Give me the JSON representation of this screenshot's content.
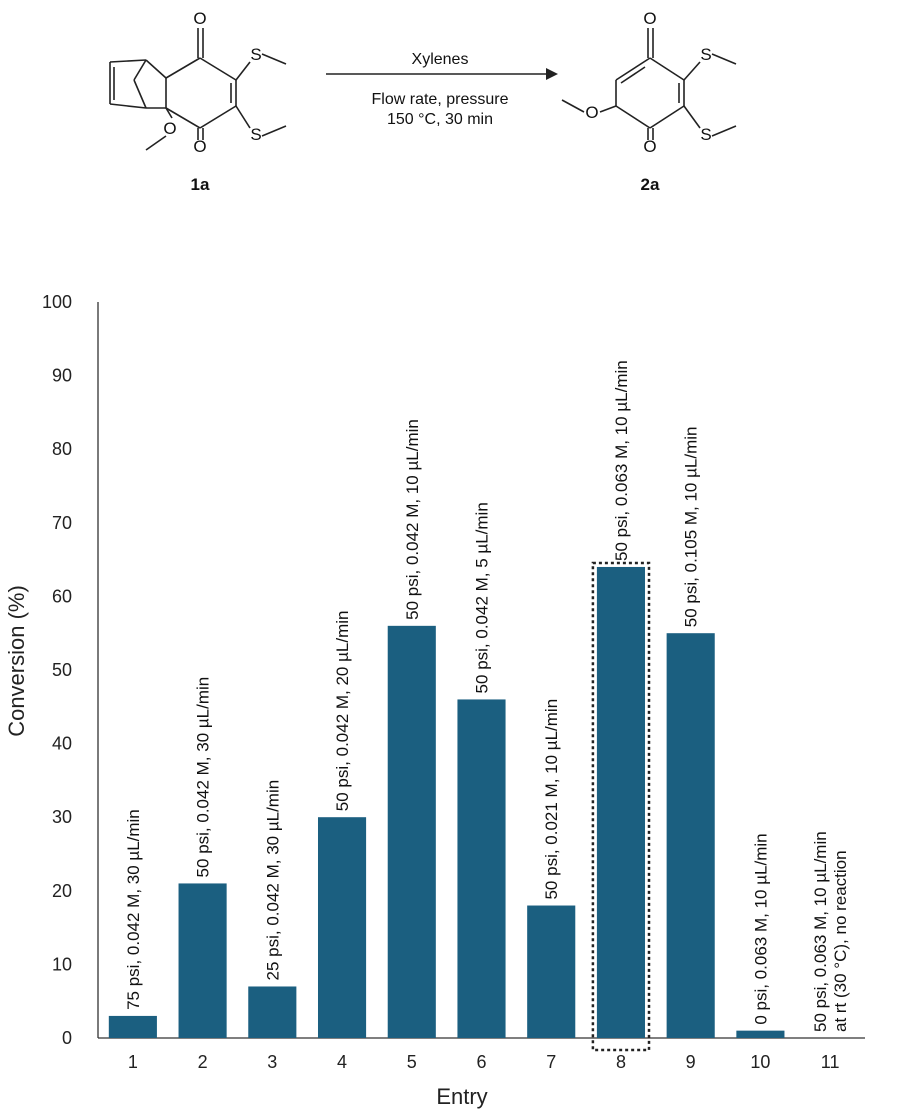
{
  "scheme": {
    "reagent": "Xylenes",
    "conditions_line1": "Flow rate, pressure",
    "conditions_line2": "150 °C, 30 min",
    "compound_left": "1a",
    "compound_right": "2a",
    "atoms": {
      "oxygen": "O",
      "sulfur": "S"
    }
  },
  "chart_data": {
    "type": "bar",
    "xlabel": "Entry",
    "ylabel": "Conversion (%)",
    "ylim": [
      0,
      100
    ],
    "yticks": [
      0,
      10,
      20,
      30,
      40,
      50,
      60,
      70,
      80,
      90,
      100
    ],
    "categories": [
      "1",
      "2",
      "3",
      "4",
      "5",
      "6",
      "7",
      "8",
      "9",
      "10",
      "11"
    ],
    "values": [
      3,
      21,
      7,
      30,
      56,
      46,
      18,
      64,
      55,
      1,
      0
    ],
    "bar_color": "#1b5f80",
    "highlighted_entry": "8",
    "grid": false,
    "legend": "none",
    "annotations": [
      [
        "75 psi, 0.042 M, 30 µL/min"
      ],
      [
        "50 psi, 0.042 M, 30 µL/min"
      ],
      [
        "25 psi, 0.042 M, 30 µL/min"
      ],
      [
        "50 psi, 0.042 M, 20 µL/min"
      ],
      [
        "50 psi, 0.042 M, 10 µL/min"
      ],
      [
        "50 psi, 0.042 M, 5 µL/min"
      ],
      [
        "50 psi, 0.021 M, 10 µL/min"
      ],
      [
        "50 psi, 0.063 M, 10 µL/min"
      ],
      [
        "50 psi, 0.105 M, 10 µL/min"
      ],
      [
        "0 psi, 0.063 M, 10 µL/min"
      ],
      [
        "50 psi, 0.063 M, 10 µL/min",
        "at rt (30 °C), no reaction"
      ]
    ]
  }
}
